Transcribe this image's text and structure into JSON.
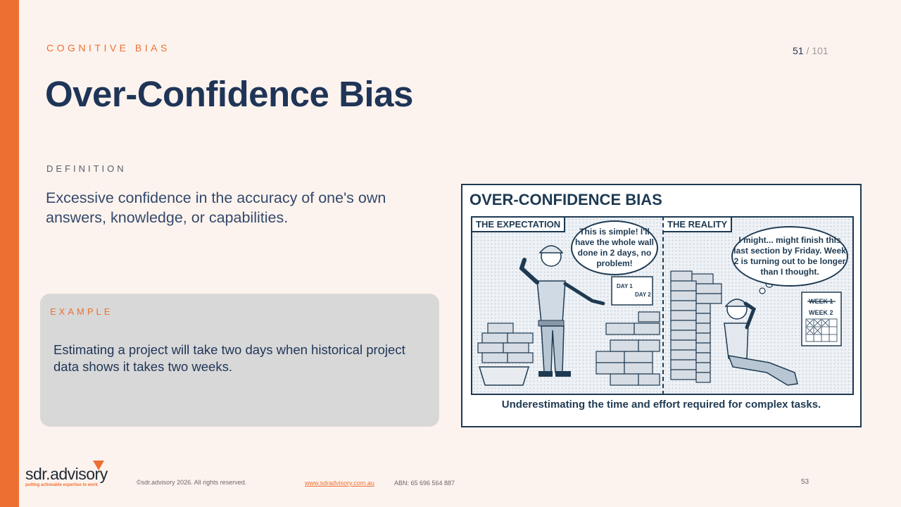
{
  "header": {
    "kicker": "COGNITIVE BIAS",
    "current_page": "51",
    "page_separator": "/",
    "total_pages": "101",
    "title": "Over-Confidence Bias"
  },
  "definition": {
    "label": "DEFINITION",
    "text": "Excessive confidence in the accuracy of one's own answers, knowledge, or capabilities."
  },
  "example": {
    "label": "EXAMPLE",
    "text": "Estimating a project will take two days when historical project data shows it takes two weeks."
  },
  "illustration": {
    "title": "OVER-CONFIDENCE BIAS",
    "left_panel_label": "THE EXPECTATION",
    "left_bubble": "This is simple! I'll have the whole wall done in 2 days, no problem!",
    "left_calendar_day1": "DAY 1",
    "left_calendar_day2": "DAY 2",
    "right_panel_label": "THE REALITY",
    "right_bubble": "I might... might finish this last section by Friday. Week 2 is turning out to be longer than I thought.",
    "right_calendar_week1": "WEEK 1",
    "right_calendar_week2": "WEEK 2",
    "caption": "Underestimating the time and effort required for complex tasks."
  },
  "footer": {
    "logo_text": "sdr.advisory",
    "logo_tagline": "putting actionable expertise to work",
    "copyright": "©sdr.advisory 2026.  All rights reserved.",
    "website": "www.sdradvisory.com.au",
    "abn": "ABN: 65 696 564 887",
    "slide_number": "53"
  },
  "colors": {
    "accent": "#ec7032",
    "navy": "#1f3557",
    "background": "#fdf3ee",
    "example_bg": "#d8d8d8"
  }
}
